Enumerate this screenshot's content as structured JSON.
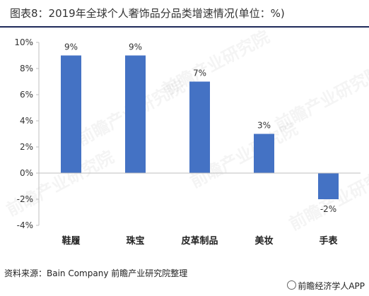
{
  "title": "图表8：2019年全球个人奢饰品分品类增速情况(单位：%)",
  "source": "资料来源：Bain Company 前瞻产业研究院整理",
  "brand": "前瞻经济学人APP",
  "watermark": "前瞻产业研究院",
  "colors": {
    "bar": "#4472c4",
    "rule": "#1f2a5a"
  },
  "chart_data": {
    "type": "bar",
    "title": "",
    "xlabel": "",
    "ylabel": "",
    "categories": [
      "鞋履",
      "珠宝",
      "皮革制品",
      "美妆",
      "手表"
    ],
    "values": [
      9,
      9,
      7,
      3,
      -2
    ],
    "data_labels": [
      "9%",
      "9%",
      "7%",
      "3%",
      "-2%"
    ],
    "ylim": [
      -4,
      10
    ],
    "yticks": [
      -4,
      -2,
      0,
      2,
      4,
      6,
      8,
      10
    ],
    "ytick_labels": [
      "-4%",
      "-2%",
      "0%",
      "2%",
      "4%",
      "6%",
      "8%",
      "10%"
    ],
    "grid": false,
    "legend": "none"
  }
}
